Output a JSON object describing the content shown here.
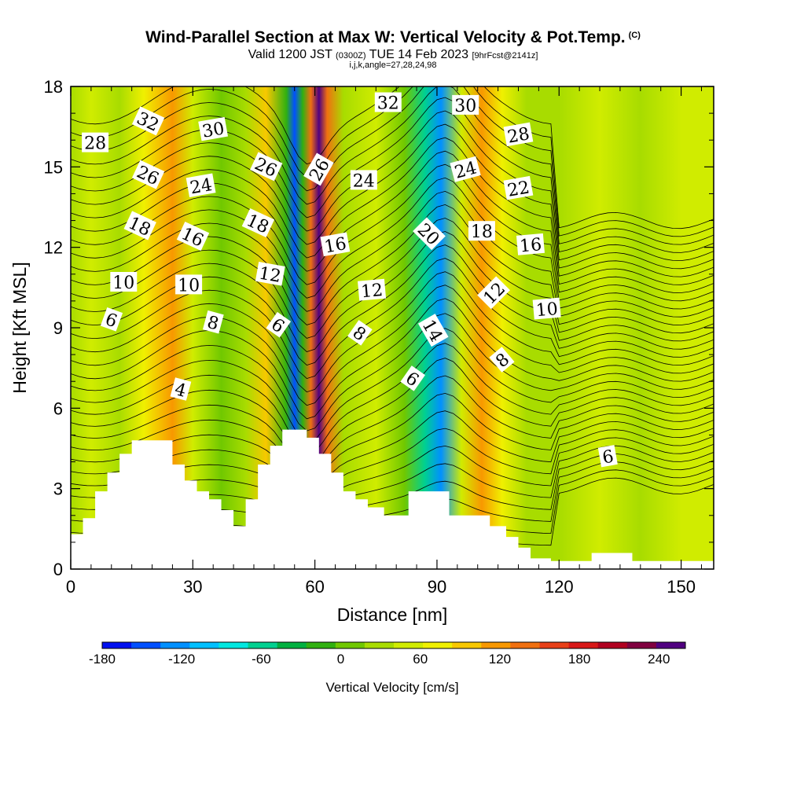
{
  "title": {
    "main": "Wind-Parallel Section at Max W: Vertical Velocity & Pot.Temp.",
    "units_tag": "(C)",
    "valid_a": "Valid 1200 JST",
    "valid_utc": "(0300Z)",
    "valid_b": "TUE 14 Feb 2023",
    "forecast": "[9hrFcst@2141z]",
    "indices": "i,j,k,angle=27,28,24,98"
  },
  "chart_data": {
    "type": "heatmap",
    "xlabel": "Distance [nm]",
    "ylabel": "Height [Kft MSL]",
    "xlim": [
      0,
      158
    ],
    "ylim": [
      0,
      18
    ],
    "xticks": [
      "0",
      "30",
      "60",
      "90",
      "120",
      "150"
    ],
    "yticks": [
      "0",
      "3",
      "6",
      "9",
      "12",
      "15",
      "18"
    ],
    "colorbar": {
      "label": "Vertical Velocity [cm/s]",
      "range": [
        -180,
        260
      ],
      "step": 20,
      "tick_values": [
        -180,
        -120,
        -60,
        0,
        60,
        120,
        180,
        240
      ],
      "tick_labels": [
        "-180",
        "-120",
        "-60",
        "0",
        "60",
        "120",
        "180",
        "240"
      ],
      "colors": [
        "#0010f0",
        "#0050ff",
        "#0090ff",
        "#00c0ff",
        "#00e8e0",
        "#00d090",
        "#00b040",
        "#30b010",
        "#70c800",
        "#a8dc00",
        "#d0ec00",
        "#f0f000",
        "#f8c800",
        "#f89800",
        "#f07010",
        "#e84018",
        "#d81818",
        "#b00020",
        "#800040",
        "#500080"
      ]
    },
    "vertical_velocity_bands": [
      {
        "x": 0,
        "w": 5
      },
      {
        "x": 5,
        "w": 20
      },
      {
        "x": 12,
        "w": 10
      },
      {
        "x": 18,
        "w": 40
      },
      {
        "x": 25,
        "w": 80
      },
      {
        "x": 30,
        "w": 20
      },
      {
        "x": 37,
        "w": -20
      },
      {
        "x": 43,
        "w": 10
      },
      {
        "x": 48,
        "w": 60
      },
      {
        "x": 53,
        "w": -40
      },
      {
        "x": 55,
        "w": -160
      },
      {
        "x": 57,
        "w": -40
      },
      {
        "x": 59,
        "w": 100
      },
      {
        "x": 61,
        "w": 220
      },
      {
        "x": 63,
        "w": 100
      },
      {
        "x": 67,
        "w": 10
      },
      {
        "x": 75,
        "w": 30
      },
      {
        "x": 82,
        "w": -20
      },
      {
        "x": 87,
        "w": -80
      },
      {
        "x": 91,
        "w": -140
      },
      {
        "x": 96,
        "w": 20
      },
      {
        "x": 101,
        "w": 80
      },
      {
        "x": 106,
        "w": 40
      },
      {
        "x": 112,
        "w": 10
      },
      {
        "x": 120,
        "w": 0
      },
      {
        "x": 130,
        "w": 20
      },
      {
        "x": 140,
        "w": 10
      },
      {
        "x": 150,
        "w": 30
      },
      {
        "x": 158,
        "w": 20
      }
    ],
    "terrain": [
      [
        0,
        1.3
      ],
      [
        3,
        1.3
      ],
      [
        3,
        1.9
      ],
      [
        6,
        1.9
      ],
      [
        6,
        2.9
      ],
      [
        9,
        2.9
      ],
      [
        9,
        3.6
      ],
      [
        12,
        3.6
      ],
      [
        12,
        4.3
      ],
      [
        15,
        4.3
      ],
      [
        15,
        4.8
      ],
      [
        25,
        4.8
      ],
      [
        25,
        3.9
      ],
      [
        28,
        3.9
      ],
      [
        28,
        3.3
      ],
      [
        31,
        3.3
      ],
      [
        31,
        2.9
      ],
      [
        34,
        2.9
      ],
      [
        34,
        2.6
      ],
      [
        37,
        2.6
      ],
      [
        37,
        2.2
      ],
      [
        40,
        2.2
      ],
      [
        40,
        1.6
      ],
      [
        43,
        1.6
      ],
      [
        43,
        2.6
      ],
      [
        46,
        2.6
      ],
      [
        46,
        3.9
      ],
      [
        49,
        3.9
      ],
      [
        49,
        4.6
      ],
      [
        52,
        4.6
      ],
      [
        52,
        5.2
      ],
      [
        58,
        5.2
      ],
      [
        58,
        4.9
      ],
      [
        61,
        4.9
      ],
      [
        61,
        4.3
      ],
      [
        64,
        4.3
      ],
      [
        64,
        3.6
      ],
      [
        67,
        3.6
      ],
      [
        67,
        2.9
      ],
      [
        70,
        2.9
      ],
      [
        70,
        2.6
      ],
      [
        73,
        2.6
      ],
      [
        73,
        2.3
      ],
      [
        77,
        2.3
      ],
      [
        77,
        2.0
      ],
      [
        83,
        2.0
      ],
      [
        83,
        2.9
      ],
      [
        93,
        2.9
      ],
      [
        93,
        2.0
      ],
      [
        103,
        2.0
      ],
      [
        103,
        1.6
      ],
      [
        107,
        1.6
      ],
      [
        107,
        1.2
      ],
      [
        110,
        1.2
      ],
      [
        110,
        0.8
      ],
      [
        113,
        0.8
      ],
      [
        113,
        0.4
      ],
      [
        118,
        0.4
      ],
      [
        118,
        0.3
      ],
      [
        128,
        0.3
      ],
      [
        128,
        0.6
      ],
      [
        138,
        0.6
      ],
      [
        138,
        0.3
      ],
      [
        158,
        0.3
      ]
    ],
    "theta_labels": [
      {
        "text": "32",
        "x": 19,
        "y": 16.7,
        "rot": 25
      },
      {
        "text": "30",
        "x": 35,
        "y": 16.4,
        "rot": -10
      },
      {
        "text": "28",
        "x": 6,
        "y": 15.9,
        "rot": 0
      },
      {
        "text": "26",
        "x": 19,
        "y": 14.7,
        "rot": 25
      },
      {
        "text": "24",
        "x": 32,
        "y": 14.3,
        "rot": -10
      },
      {
        "text": "26",
        "x": 48,
        "y": 15.0,
        "rot": 25
      },
      {
        "text": "26",
        "x": 61,
        "y": 14.9,
        "rot": -60
      },
      {
        "text": "32",
        "x": 78,
        "y": 17.4,
        "rot": 0
      },
      {
        "text": "30",
        "x": 97,
        "y": 17.3,
        "rot": 0
      },
      {
        "text": "28",
        "x": 110,
        "y": 16.2,
        "rot": -10
      },
      {
        "text": "24",
        "x": 72,
        "y": 14.5,
        "rot": 0
      },
      {
        "text": "24",
        "x": 97,
        "y": 14.9,
        "rot": -15
      },
      {
        "text": "22",
        "x": 110,
        "y": 14.2,
        "rot": -10
      },
      {
        "text": "18",
        "x": 17,
        "y": 12.8,
        "rot": 25
      },
      {
        "text": "16",
        "x": 30,
        "y": 12.4,
        "rot": 25
      },
      {
        "text": "18",
        "x": 46,
        "y": 12.9,
        "rot": 25
      },
      {
        "text": "16",
        "x": 65,
        "y": 12.1,
        "rot": -10
      },
      {
        "text": "20",
        "x": 88,
        "y": 12.5,
        "rot": 45
      },
      {
        "text": "18",
        "x": 101,
        "y": 12.6,
        "rot": 0
      },
      {
        "text": "16",
        "x": 113,
        "y": 12.1,
        "rot": -5
      },
      {
        "text": "10",
        "x": 13,
        "y": 10.7,
        "rot": 0
      },
      {
        "text": "10",
        "x": 29,
        "y": 10.6,
        "rot": 0
      },
      {
        "text": "12",
        "x": 49,
        "y": 11.0,
        "rot": 10
      },
      {
        "text": "12",
        "x": 74,
        "y": 10.4,
        "rot": -5
      },
      {
        "text": "12",
        "x": 104,
        "y": 10.3,
        "rot": -45
      },
      {
        "text": "10",
        "x": 117,
        "y": 9.7,
        "rot": -5
      },
      {
        "text": "6",
        "x": 10,
        "y": 9.3,
        "rot": 20
      },
      {
        "text": "8",
        "x": 35,
        "y": 9.2,
        "rot": 15
      },
      {
        "text": "6",
        "x": 51,
        "y": 9.1,
        "rot": 35
      },
      {
        "text": "8",
        "x": 71,
        "y": 8.8,
        "rot": 35
      },
      {
        "text": "14",
        "x": 89,
        "y": 8.9,
        "rot": 60
      },
      {
        "text": "8",
        "x": 106,
        "y": 7.8,
        "rot": -40
      },
      {
        "text": "6",
        "x": 84,
        "y": 7.1,
        "rot": 35
      },
      {
        "text": "4",
        "x": 27,
        "y": 6.7,
        "rot": 15
      },
      {
        "text": "6",
        "x": 132,
        "y": 4.2,
        "rot": -10
      }
    ]
  }
}
